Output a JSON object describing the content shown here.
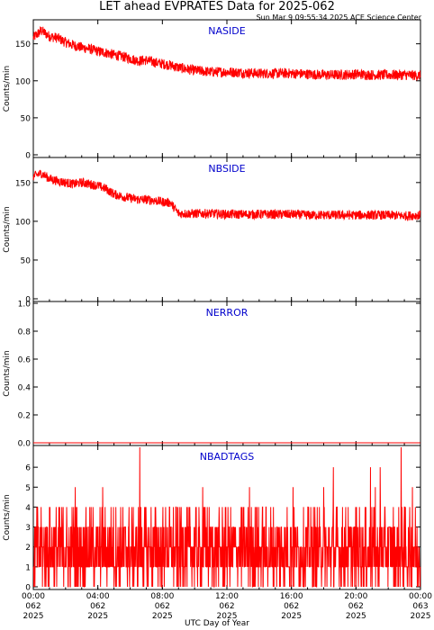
{
  "title": "LET ahead EVPRATES Data for 2025-062",
  "timestamp": "Sun Mar  9 09:55:34 2025 ACE Science Center",
  "xlabel": "UTC Day of Year",
  "colors": {
    "series": "#ff0000",
    "panel_label": "#0000cc",
    "axis": "#000000"
  },
  "x_ticks": [
    {
      "hour": 0,
      "lines": [
        "00:00",
        "062",
        "2025"
      ]
    },
    {
      "hour": 4,
      "lines": [
        "04:00",
        "062",
        "2025"
      ]
    },
    {
      "hour": 8,
      "lines": [
        "08:00",
        "062",
        "2025"
      ]
    },
    {
      "hour": 12,
      "lines": [
        "12:00",
        "062",
        "2025"
      ]
    },
    {
      "hour": 16,
      "lines": [
        "16:00",
        "062",
        "2025"
      ]
    },
    {
      "hour": 20,
      "lines": [
        "20:00",
        "062",
        "2025"
      ]
    },
    {
      "hour": 24,
      "lines": [
        "00:00",
        "063",
        "2025"
      ]
    }
  ],
  "chart_data": [
    {
      "type": "line",
      "label": "NASIDE",
      "ylabel": "Counts/min",
      "ylim": [
        0,
        180
      ],
      "yticks": [
        0,
        50,
        100,
        150
      ],
      "xlim_hours": [
        0,
        24
      ],
      "series": [
        {
          "x_hours": [
            0,
            0.5,
            1,
            1.5,
            2,
            2.5,
            3,
            3.5,
            4,
            4.5,
            5,
            5.5,
            6,
            6.5,
            7,
            7.5,
            8,
            8.5,
            9,
            9.5,
            10,
            11,
            12,
            13,
            14,
            15,
            16,
            17,
            18,
            19,
            20,
            21,
            22,
            23,
            24
          ],
          "y": [
            158,
            168,
            160,
            158,
            152,
            148,
            145,
            143,
            140,
            138,
            135,
            133,
            130,
            127,
            128,
            125,
            123,
            121,
            118,
            116,
            114,
            112,
            112,
            111,
            110,
            110,
            110,
            109,
            108,
            108,
            109,
            108,
            108,
            108,
            107
          ],
          "noise": 7
        }
      ]
    },
    {
      "type": "line",
      "label": "NBSIDE",
      "ylabel": "Counts/min",
      "ylim": [
        0,
        180
      ],
      "yticks": [
        0,
        50,
        100,
        150
      ],
      "xlim_hours": [
        0,
        24
      ],
      "series": [
        {
          "x_hours": [
            0,
            0.5,
            1,
            1.5,
            2,
            2.5,
            3,
            3.5,
            4,
            4.5,
            5,
            5.5,
            6,
            6.5,
            7,
            7.5,
            8,
            8.5,
            9,
            9.5,
            10,
            11,
            12,
            13,
            14,
            15,
            16,
            17,
            18,
            19,
            20,
            21,
            22,
            23,
            24
          ],
          "y": [
            158,
            162,
            155,
            152,
            150,
            148,
            150,
            148,
            146,
            142,
            135,
            132,
            130,
            128,
            128,
            127,
            125,
            124,
            110,
            110,
            110,
            110,
            109,
            109,
            109,
            109,
            109,
            108,
            108,
            108,
            108,
            108,
            108,
            107,
            108
          ],
          "noise": 6
        }
      ]
    },
    {
      "type": "line",
      "label": "NERROR",
      "ylabel": "Counts/min",
      "ylim": [
        0,
        1.0
      ],
      "yticks": [
        0.0,
        0.2,
        0.4,
        0.6,
        0.8,
        1.0
      ],
      "yticklabels": [
        "0.0",
        "0.2",
        "0.4",
        "0.6",
        "0.8",
        "1.0"
      ],
      "xlim_hours": [
        0,
        24
      ],
      "series": [
        {
          "x_hours": [
            0,
            24
          ],
          "y": [
            0,
            0
          ],
          "noise": 0
        }
      ]
    },
    {
      "type": "line",
      "label": "NBADTAGS",
      "ylabel": "Counts/min",
      "ylim": [
        0,
        7
      ],
      "yticks": [
        0,
        1,
        2,
        3,
        4,
        5,
        6
      ],
      "xlim_hours": [
        0,
        24
      ],
      "series": [
        {
          "distribution": "integer counts 0-4 per minute, mostly 1-3",
          "spikes": [
            {
              "hour": 6.6,
              "y": 7
            },
            {
              "hour": 22.8,
              "y": 7
            },
            {
              "hour": 2.6,
              "y": 5
            },
            {
              "hour": 4.3,
              "y": 5
            },
            {
              "hour": 10.5,
              "y": 5
            },
            {
              "hour": 13.4,
              "y": 5
            },
            {
              "hour": 16.1,
              "y": 5
            },
            {
              "hour": 18.0,
              "y": 5
            },
            {
              "hour": 21.2,
              "y": 5
            },
            {
              "hour": 23.5,
              "y": 5
            },
            {
              "hour": 21.5,
              "y": 6
            },
            {
              "hour": 18.6,
              "y": 6
            },
            {
              "hour": 20.9,
              "y": 6
            }
          ]
        }
      ]
    }
  ]
}
